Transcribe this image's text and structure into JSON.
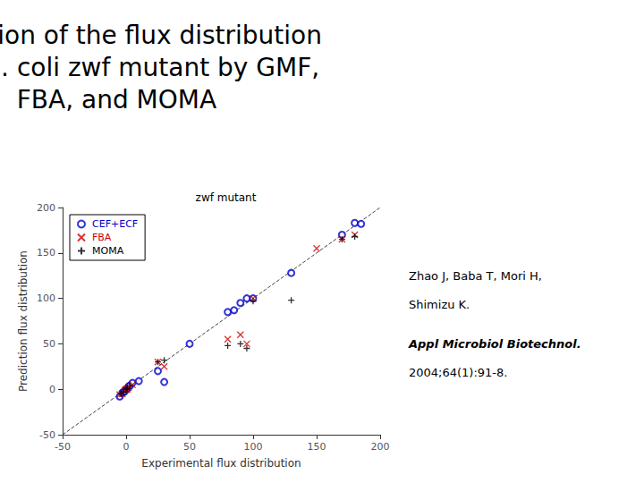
{
  "chart_data": {
    "type": "scatter",
    "title": "Prediction of the flux distribution\nof an E. coli zwf mutant by GMF,\nFBA, and MOMA",
    "subtitle": "zwf mutant",
    "xlabel": "Experimental flux distribution",
    "ylabel": "Prediction flux distribution",
    "xlim": [
      -50,
      200
    ],
    "ylim": [
      -50,
      200
    ],
    "xticks": [
      -50,
      0,
      50,
      100,
      150,
      200
    ],
    "yticks": [
      -50,
      0,
      50,
      100,
      150,
      200
    ],
    "grid": false,
    "legend": "upper left",
    "annotations": [
      "Zhao J, Baba T, Mori H,",
      "Shimizu K.",
      "Appl Microbiol Biotechnol.",
      "2004;64(1):91-8."
    ],
    "series": [
      {
        "type": "line",
        "line_style": "dashed",
        "color": "#444444",
        "x": [
          -50,
          200
        ],
        "values": [
          -50,
          200
        ]
      },
      {
        "name": "CEF+ECF",
        "type": "scatter",
        "marker": "circle",
        "color": "#0000cc",
        "x": [
          -5,
          -3,
          -2,
          -1,
          0,
          1,
          2,
          3,
          5,
          10,
          25,
          30,
          50,
          80,
          85,
          90,
          95,
          100,
          130,
          170,
          180,
          185
        ],
        "values": [
          -8,
          -4,
          -3,
          -2,
          0,
          1,
          3,
          4,
          7,
          9,
          20,
          8,
          50,
          85,
          87,
          95,
          100,
          100,
          128,
          170,
          183,
          182
        ]
      },
      {
        "name": "FBA",
        "type": "scatter",
        "marker": "x",
        "color": "#cc0000",
        "x": [
          -5,
          -3,
          -1,
          0,
          1,
          2,
          5,
          25,
          30,
          80,
          90,
          95,
          100,
          150,
          170,
          180
        ],
        "values": [
          -6,
          -5,
          -1,
          0,
          0,
          2,
          5,
          30,
          25,
          55,
          60,
          50,
          100,
          155,
          165,
          170
        ]
      },
      {
        "name": "MOMA",
        "type": "scatter",
        "marker": "plus",
        "color": "#000000",
        "x": [
          -4,
          -2,
          0,
          1,
          3,
          25,
          30,
          80,
          90,
          95,
          100,
          130,
          170,
          180
        ],
        "values": [
          -5,
          -3,
          0,
          1,
          4,
          30,
          32,
          48,
          50,
          45,
          97,
          98,
          165,
          168
        ]
      }
    ]
  }
}
